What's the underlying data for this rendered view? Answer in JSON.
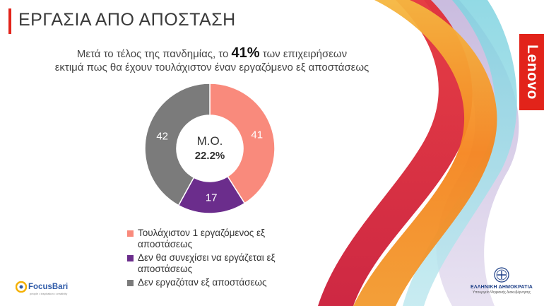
{
  "title": "ΕΡΓΑΣΙΑ ΑΠΟ ΑΠΟΣΤΑΣΗ",
  "subtitle": {
    "before": "Μετά το τέλος της πανδημίας, το ",
    "highlight": "41%",
    "after": " των επιχειρήσεων",
    "line2": "εκτιμά πως θα έχουν τουλάχιστον έναν εργαζόμενο εξ αποστάσεως"
  },
  "chart_data": {
    "type": "pie",
    "variant": "donut",
    "center_label": "Μ.Ο.",
    "center_value": "22.2%",
    "slices": [
      {
        "label": "Τουλάχιστον 1 εργαζόμενος εξ αποστάσεως",
        "value": 41,
        "color": "#f98a7c"
      },
      {
        "label": "Δεν θα συνεχίσει να εργάζεται εξ αποστάσεως",
        "value": 17,
        "color": "#6b2d8c"
      },
      {
        "label": "Δεν εργαζόταν εξ αποστάσεως",
        "value": 42,
        "color": "#7b7b7b"
      }
    ],
    "legend_position": "bottom"
  },
  "brand": {
    "accent": "#e2231a",
    "lenovo": "Lenovo"
  },
  "logos": {
    "focusbari_name": "FocusBari",
    "focusbari_tagline": "people • inspiration • creativity",
    "gov_name": "ΕΛΛΗΝΙΚΗ ΔΗΜΟΚΡΑΤΙΑ",
    "gov_sub": "Υπουργείο Ψηφιακής Διακυβέρνησης"
  }
}
